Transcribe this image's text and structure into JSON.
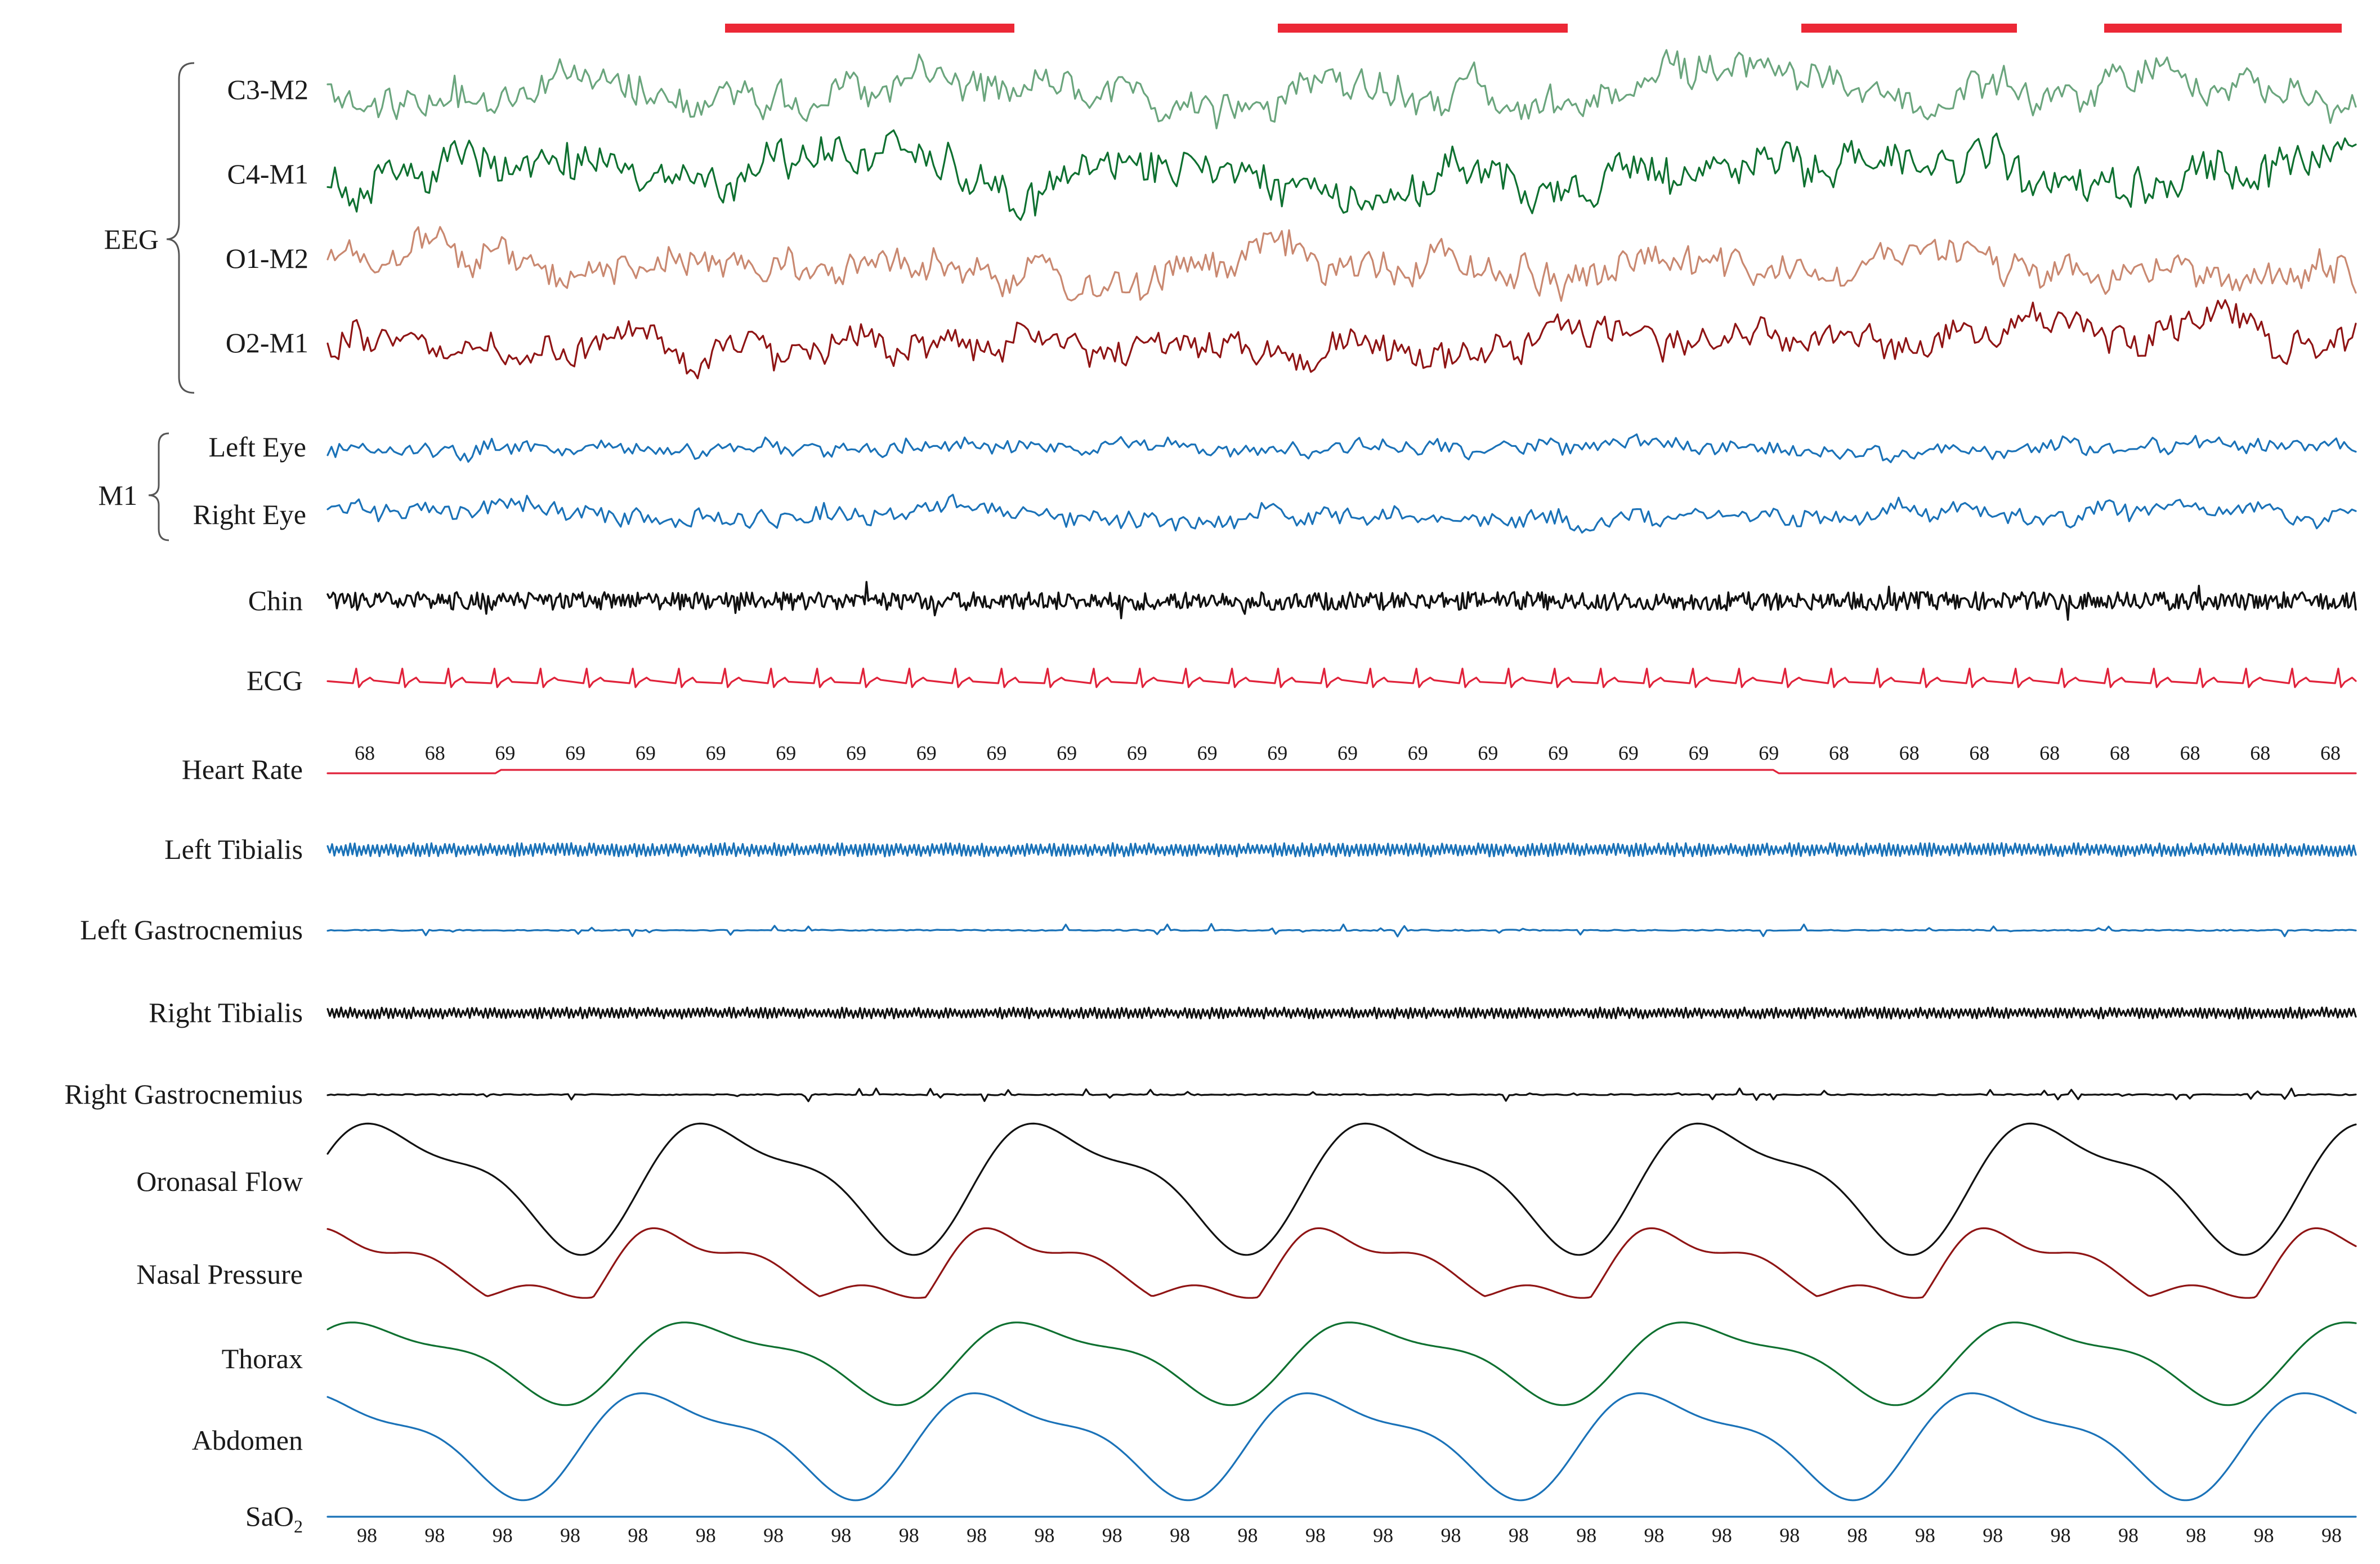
{
  "groups": {
    "eeg": "EEG",
    "eye": "M1"
  },
  "channels": [
    {
      "key": "c3m2",
      "label": "C3-M2",
      "color": "#6aa57d",
      "kind": "eeg"
    },
    {
      "key": "c4m1",
      "label": "C4-M1",
      "color": "#0e7030",
      "kind": "eeg"
    },
    {
      "key": "o1m2",
      "label": "O1-M2",
      "color": "#c98870",
      "kind": "eeg"
    },
    {
      "key": "o2m1",
      "label": "O2-M1",
      "color": "#8f1414",
      "kind": "eeg"
    },
    {
      "key": "left_eye",
      "label": "Left Eye",
      "color": "#1a72b8",
      "kind": "eog"
    },
    {
      "key": "right_eye",
      "label": "Right Eye",
      "color": "#1a72b8",
      "kind": "eog"
    },
    {
      "key": "chin",
      "label": "Chin",
      "color": "#111111",
      "kind": "emg"
    },
    {
      "key": "ecg",
      "label": "ECG",
      "color": "#e0223a",
      "kind": "ecg"
    },
    {
      "key": "heart_rate",
      "label": "Heart Rate",
      "color": "#e0223a",
      "kind": "hr"
    },
    {
      "key": "left_tibialis",
      "label": "Left Tibialis",
      "color": "#1a72b8",
      "kind": "leg"
    },
    {
      "key": "left_gastrocnemius",
      "label": "Left Gastrocnemius",
      "color": "#1a72b8",
      "kind": "legflat"
    },
    {
      "key": "right_tibialis",
      "label": "Right Tibialis",
      "color": "#111111",
      "kind": "leg"
    },
    {
      "key": "right_gastrocnemius",
      "label": "Right Gastrocnemius",
      "color": "#111111",
      "kind": "legflat"
    },
    {
      "key": "oronasal_flow",
      "label": "Oronasal Flow",
      "color": "#111111",
      "kind": "flow"
    },
    {
      "key": "nasal_pressure",
      "label": "Nasal Pressure",
      "color": "#8f1414",
      "kind": "press"
    },
    {
      "key": "thorax",
      "label": "Thorax",
      "color": "#0e7030",
      "kind": "thorax"
    },
    {
      "key": "abdomen",
      "label": "Abdomen",
      "color": "#1a72b8",
      "kind": "abdomen"
    },
    {
      "key": "sao2",
      "label": "SaO",
      "label_sub": "2",
      "color": "#1a72b8",
      "kind": "sat"
    }
  ],
  "heart_rate_values": [
    68,
    68,
    69,
    69,
    69,
    69,
    69,
    69,
    69,
    69,
    69,
    69,
    69,
    69,
    69,
    69,
    69,
    69,
    69,
    69,
    69,
    68,
    68,
    68,
    68,
    68,
    68,
    68,
    68
  ],
  "sao2_values": [
    98,
    98,
    98,
    98,
    98,
    98,
    98,
    98,
    98,
    98,
    98,
    98,
    98,
    98,
    98,
    98,
    98,
    98,
    98,
    98,
    98,
    98,
    98,
    98,
    98,
    98,
    98,
    98,
    98,
    98
  ],
  "arousal_marker_color": "#ec2836",
  "arousal_count": 4
}
